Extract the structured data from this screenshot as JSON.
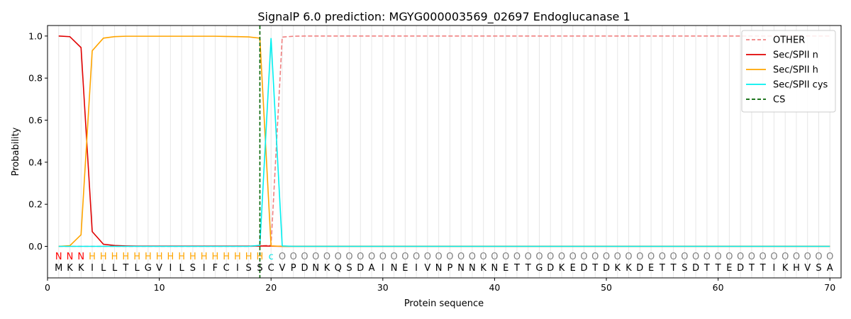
{
  "chart_data": {
    "type": "line",
    "title": "SignalP 6.0 prediction: MGYG000003569_02697 Endoglucanase 1",
    "xlabel": "Protein sequence",
    "ylabel": "Probability",
    "xlim": [
      0,
      71
    ],
    "ylim": [
      -0.15,
      1.05
    ],
    "x_ticks": [
      0,
      10,
      20,
      30,
      40,
      50,
      60,
      70
    ],
    "y_ticks": [
      0.0,
      0.2,
      0.4,
      0.6,
      0.8,
      1.0
    ],
    "x_tick_labels": [
      "0",
      "10",
      "20",
      "30",
      "40",
      "50",
      "60",
      "70"
    ],
    "y_tick_labels": [
      "0.0",
      "0.2",
      "0.4",
      "0.6",
      "0.8",
      "1.0"
    ],
    "legend_position": "top-right",
    "sequence": [
      "M",
      "K",
      "K",
      "I",
      "L",
      "L",
      "T",
      "L",
      "G",
      "V",
      "I",
      "L",
      "S",
      "I",
      "F",
      "C",
      "I",
      "S",
      "S",
      "C",
      "V",
      "P",
      "D",
      "N",
      "K",
      "Q",
      "S",
      "D",
      "A",
      "I",
      "N",
      "E",
      "I",
      "V",
      "N",
      "P",
      "N",
      "N",
      "K",
      "N",
      "E",
      "T",
      "T",
      "G",
      "D",
      "K",
      "E",
      "D",
      "T",
      "D",
      "K",
      "K",
      "D",
      "E",
      "T",
      "T",
      "S",
      "D",
      "T",
      "T",
      "E",
      "D",
      "T",
      "T",
      "I",
      "K",
      "H",
      "V",
      "S",
      "A"
    ],
    "labels": [
      "N",
      "N",
      "N",
      "H",
      "H",
      "H",
      "H",
      "H",
      "H",
      "H",
      "H",
      "H",
      "H",
      "H",
      "H",
      "H",
      "H",
      "H",
      "H",
      "c",
      "O",
      "O",
      "O",
      "O",
      "O",
      "O",
      "O",
      "O",
      "O",
      "O",
      "O",
      "O",
      "O",
      "O",
      "O",
      "O",
      "O",
      "O",
      "O",
      "O",
      "O",
      "O",
      "O",
      "O",
      "O",
      "O",
      "O",
      "O",
      "O",
      "O",
      "O",
      "O",
      "O",
      "O",
      "O",
      "O",
      "O",
      "O",
      "O",
      "O",
      "O",
      "O",
      "O",
      "O",
      "O",
      "O",
      "O",
      "O",
      "O",
      "O"
    ],
    "label_colors": {
      "N": "#ff0000",
      "H": "#ffa500",
      "c": "#00e5e5",
      "O": "#808080"
    },
    "series": [
      {
        "name": "OTHER",
        "color": "#f08080",
        "dash": "dashed",
        "values": [
          0,
          0,
          0,
          0,
          0,
          0,
          0,
          0,
          0,
          0,
          0,
          0,
          0,
          0,
          0,
          0,
          0,
          0,
          0.002,
          0.005,
          0.995,
          0.999,
          1,
          1,
          1,
          1,
          1,
          1,
          1,
          1,
          1,
          1,
          1,
          1,
          1,
          1,
          1,
          1,
          1,
          1,
          1,
          1,
          1,
          1,
          1,
          1,
          1,
          1,
          1,
          1,
          1,
          1,
          1,
          1,
          1,
          1,
          1,
          1,
          1,
          1,
          1,
          1,
          1,
          1,
          1,
          1,
          1,
          1,
          1,
          1
        ]
      },
      {
        "name": "Sec/SPII n",
        "color": "#e00000",
        "dash": "solid",
        "values": [
          1.0,
          0.997,
          0.945,
          0.07,
          0.01,
          0.004,
          0.002,
          0.001,
          0.001,
          0.001,
          0.001,
          0.001,
          0.001,
          0.001,
          0.001,
          0.001,
          0.001,
          0.001,
          0.002,
          0.001,
          0,
          0,
          0,
          0,
          0,
          0,
          0,
          0,
          0,
          0,
          0,
          0,
          0,
          0,
          0,
          0,
          0,
          0,
          0,
          0,
          0,
          0,
          0,
          0,
          0,
          0,
          0,
          0,
          0,
          0,
          0,
          0,
          0,
          0,
          0,
          0,
          0,
          0,
          0,
          0,
          0,
          0,
          0,
          0,
          0,
          0,
          0,
          0,
          0,
          0
        ]
      },
      {
        "name": "Sec/SPII h",
        "color": "#ffa500",
        "dash": "solid",
        "values": [
          0.0,
          0.003,
          0.055,
          0.93,
          0.99,
          0.997,
          0.999,
          0.999,
          0.999,
          0.999,
          0.999,
          0.999,
          0.999,
          0.999,
          0.999,
          0.998,
          0.997,
          0.996,
          0.99,
          0.002,
          0,
          0,
          0,
          0,
          0,
          0,
          0,
          0,
          0,
          0,
          0,
          0,
          0,
          0,
          0,
          0,
          0,
          0,
          0,
          0,
          0,
          0,
          0,
          0,
          0,
          0,
          0,
          0,
          0,
          0,
          0,
          0,
          0,
          0,
          0,
          0,
          0,
          0,
          0,
          0,
          0,
          0,
          0,
          0,
          0,
          0,
          0,
          0,
          0,
          0
        ]
      },
      {
        "name": "Sec/SPII cys",
        "color": "#00f0f0",
        "dash": "solid",
        "values": [
          0,
          0,
          0,
          0,
          0,
          0,
          0,
          0,
          0,
          0,
          0,
          0,
          0,
          0,
          0,
          0,
          0,
          0,
          0.005,
          0.99,
          0.002,
          0,
          0,
          0,
          0,
          0,
          0,
          0,
          0,
          0,
          0,
          0,
          0,
          0,
          0,
          0,
          0,
          0,
          0,
          0,
          0,
          0,
          0,
          0,
          0,
          0,
          0,
          0,
          0,
          0,
          0,
          0,
          0,
          0,
          0,
          0,
          0,
          0,
          0,
          0,
          0,
          0,
          0,
          0,
          0,
          0,
          0,
          0,
          0,
          0
        ]
      }
    ],
    "cleavage_site": {
      "name": "CS",
      "x": 19,
      "color": "#006400"
    }
  }
}
